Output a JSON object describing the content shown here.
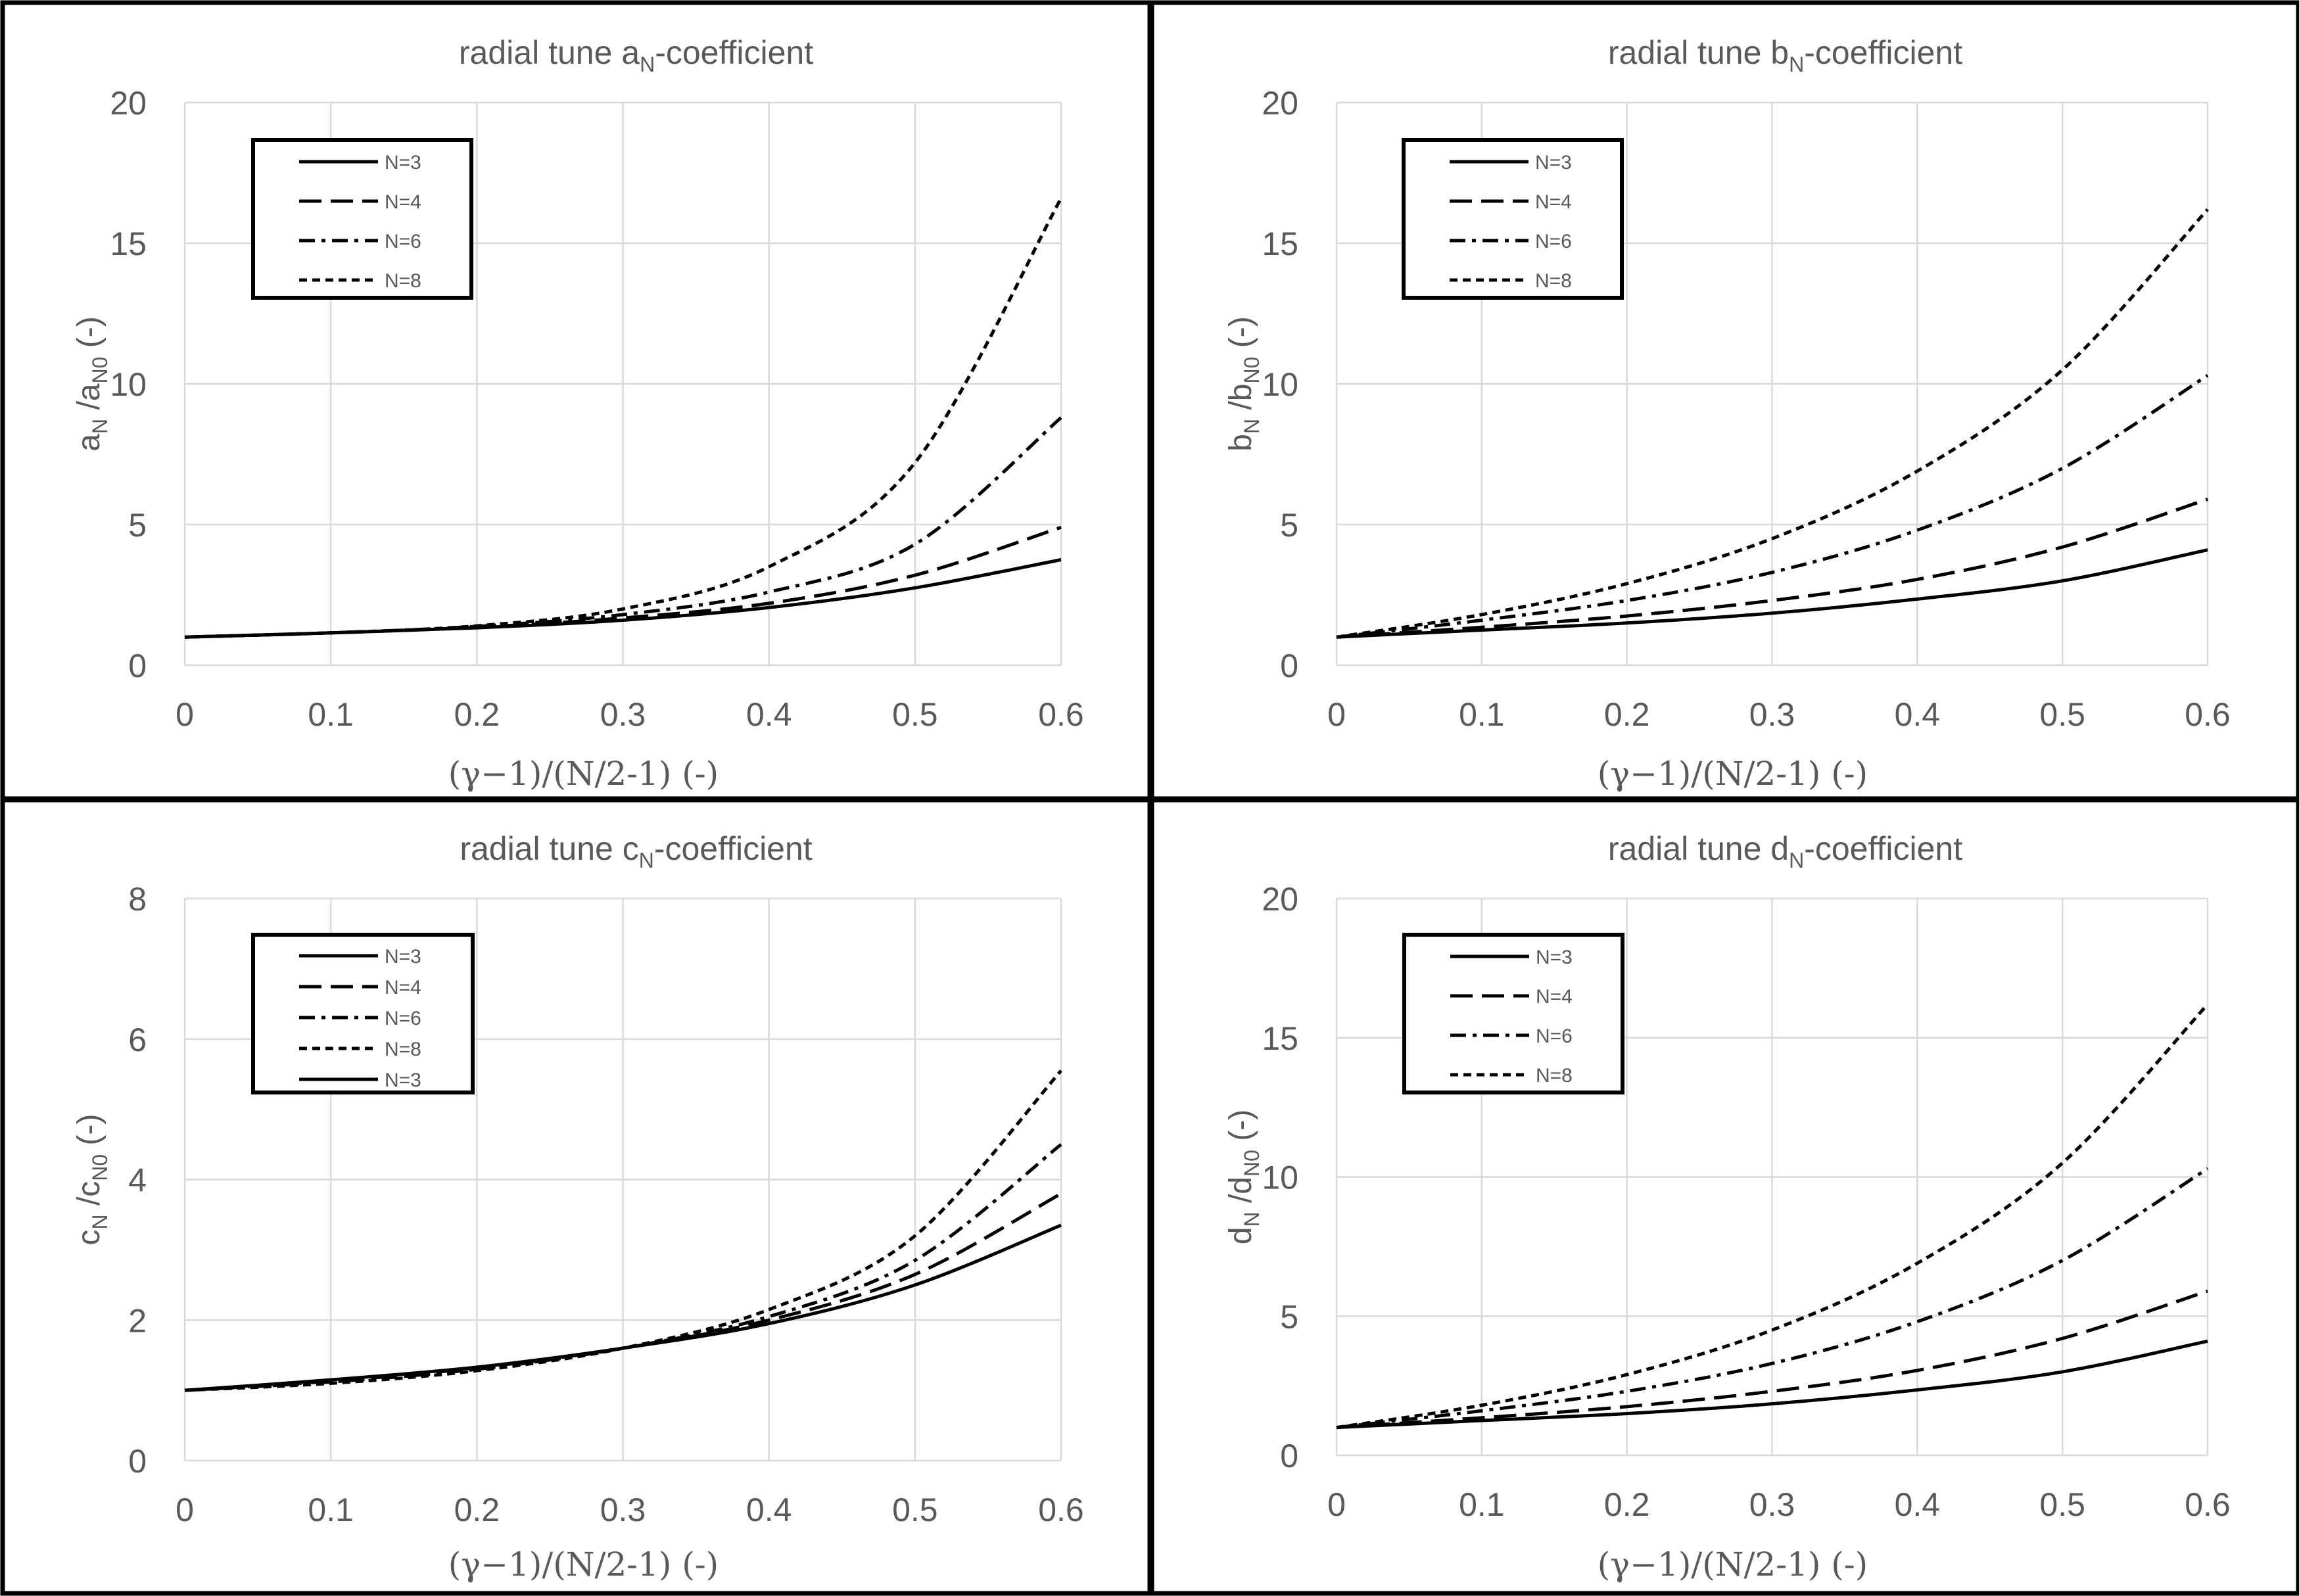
{
  "chart_data": [
    {
      "id": "a",
      "type": "line",
      "title": "radial tune aN-coefficient",
      "title_parts": {
        "pre": "radial tune a",
        "sub": "N",
        "post": "-coefficient"
      },
      "ylabel": "aN /aN0 (-)",
      "ylabel_parts": {
        "v": "a",
        "sub1": "N",
        "mid": " /a",
        "sub2": "N0",
        "post": " (-)"
      },
      "xlabel": "(γ−1)/(N/2-1) (-)",
      "xlim": [
        0,
        0.6
      ],
      "ylim": [
        0,
        20
      ],
      "xticks": [
        "0",
        "0.1",
        "0.2",
        "0.3",
        "0.4",
        "0.5",
        "0.6"
      ],
      "yticks": [
        "0",
        "5",
        "10",
        "15",
        "20"
      ],
      "x": [
        0,
        0.1,
        0.2,
        0.3,
        0.4,
        0.5,
        0.6
      ],
      "grid": true,
      "legend_position": "top-left",
      "series": [
        {
          "name": "N=3",
          "style": "solid",
          "values": [
            1.0,
            1.15,
            1.33,
            1.6,
            2.05,
            2.75,
            3.75
          ]
        },
        {
          "name": "N=4",
          "style": "dash",
          "values": [
            1.0,
            1.15,
            1.35,
            1.68,
            2.2,
            3.2,
            4.9
          ]
        },
        {
          "name": "N=6",
          "style": "dashdot",
          "values": [
            1.0,
            1.15,
            1.38,
            1.8,
            2.6,
            4.3,
            8.8
          ]
        },
        {
          "name": "N=8",
          "style": "dot",
          "values": [
            1.0,
            1.15,
            1.4,
            2.0,
            3.5,
            7.2,
            16.6
          ]
        }
      ]
    },
    {
      "id": "b",
      "type": "line",
      "title": "radial tune bN-coefficient",
      "title_parts": {
        "pre": "radial tune b",
        "sub": "N",
        "post": "-coefficient"
      },
      "ylabel": "bN /bN0 (-)",
      "ylabel_parts": {
        "v": "b",
        "sub1": "N",
        "mid": " /b",
        "sub2": "N0",
        "post": " (-)"
      },
      "xlabel": "(γ−1)/(N/2-1) (-)",
      "xlim": [
        0,
        0.6
      ],
      "ylim": [
        0,
        20
      ],
      "xticks": [
        "0",
        "0.1",
        "0.2",
        "0.3",
        "0.4",
        "0.5",
        "0.6"
      ],
      "yticks": [
        "0",
        "5",
        "10",
        "15",
        "20"
      ],
      "x": [
        0,
        0.1,
        0.2,
        0.3,
        0.4,
        0.5,
        0.6
      ],
      "grid": true,
      "legend_position": "top-left",
      "series": [
        {
          "name": "N=3",
          "style": "solid",
          "values": [
            1.0,
            1.25,
            1.5,
            1.85,
            2.35,
            3.0,
            4.1
          ]
        },
        {
          "name": "N=4",
          "style": "dash",
          "values": [
            1.0,
            1.35,
            1.75,
            2.3,
            3.05,
            4.2,
            5.9
          ]
        },
        {
          "name": "N=6",
          "style": "dashdot",
          "values": [
            1.0,
            1.6,
            2.3,
            3.3,
            4.8,
            7.0,
            10.3
          ]
        },
        {
          "name": "N=8",
          "style": "dot",
          "values": [
            1.0,
            1.8,
            2.9,
            4.5,
            6.9,
            10.5,
            16.2
          ]
        }
      ]
    },
    {
      "id": "c",
      "type": "line",
      "title": "radial tune cN-coefficient",
      "title_parts": {
        "pre": "radial tune c",
        "sub": "N",
        "post": "-coefficient"
      },
      "ylabel": "cN /cN0 (-)",
      "ylabel_parts": {
        "v": "c",
        "sub1": "N",
        "mid": " /c",
        "sub2": "N0",
        "post": " (-)"
      },
      "xlabel": "(γ−1)/(N/2-1) (-)",
      "xlim": [
        0,
        0.6
      ],
      "ylim": [
        0,
        8
      ],
      "xticks": [
        "0",
        "0.1",
        "0.2",
        "0.3",
        "0.4",
        "0.5",
        "0.6"
      ],
      "yticks": [
        "0",
        "2",
        "4",
        "6",
        "8"
      ],
      "x": [
        0,
        0.1,
        0.2,
        0.3,
        0.4,
        0.5,
        0.6
      ],
      "grid": true,
      "legend_position": "top-left",
      "series": [
        {
          "name": "N=3",
          "style": "solid",
          "values": [
            1.0,
            1.15,
            1.33,
            1.6,
            1.95,
            2.5,
            3.35
          ]
        },
        {
          "name": "N=4",
          "style": "dash",
          "values": [
            1.0,
            1.13,
            1.32,
            1.6,
            2.0,
            2.65,
            3.8
          ]
        },
        {
          "name": "N=6",
          "style": "dashdot",
          "values": [
            1.0,
            1.12,
            1.3,
            1.6,
            2.05,
            2.85,
            4.5
          ]
        },
        {
          "name": "N=8",
          "style": "dot",
          "values": [
            1.0,
            1.1,
            1.28,
            1.6,
            2.15,
            3.2,
            5.55
          ]
        },
        {
          "name": "N=3",
          "style": "solid",
          "values": [
            1.0,
            1.15,
            1.33,
            1.6,
            1.95,
            2.5,
            3.35
          ]
        }
      ]
    },
    {
      "id": "d",
      "type": "line",
      "title": "radial tune dN-coefficient",
      "title_parts": {
        "pre": "radial tune d",
        "sub": "N",
        "post": "-coefficient"
      },
      "ylabel": "dN /dN0 (-)",
      "ylabel_parts": {
        "v": "d",
        "sub1": "N",
        "mid": " /d",
        "sub2": "N0",
        "post": " (-)"
      },
      "xlabel": "(γ−1)/(N/2-1) (-)",
      "xlim": [
        0,
        0.6
      ],
      "ylim": [
        0,
        20
      ],
      "xticks": [
        "0",
        "0.1",
        "0.2",
        "0.3",
        "0.4",
        "0.5",
        "0.6"
      ],
      "yticks": [
        "0",
        "5",
        "10",
        "15",
        "20"
      ],
      "x": [
        0,
        0.1,
        0.2,
        0.3,
        0.4,
        0.5,
        0.6
      ],
      "grid": true,
      "legend_position": "top-left",
      "series": [
        {
          "name": "N=3",
          "style": "solid",
          "values": [
            1.0,
            1.25,
            1.5,
            1.85,
            2.35,
            3.0,
            4.1
          ]
        },
        {
          "name": "N=4",
          "style": "dash",
          "values": [
            1.0,
            1.35,
            1.75,
            2.3,
            3.05,
            4.2,
            5.9
          ]
        },
        {
          "name": "N=6",
          "style": "dashdot",
          "values": [
            1.0,
            1.6,
            2.3,
            3.3,
            4.8,
            7.0,
            10.3
          ]
        },
        {
          "name": "N=8",
          "style": "dot",
          "values": [
            1.0,
            1.8,
            2.9,
            4.5,
            6.9,
            10.5,
            16.2
          ]
        }
      ]
    }
  ]
}
